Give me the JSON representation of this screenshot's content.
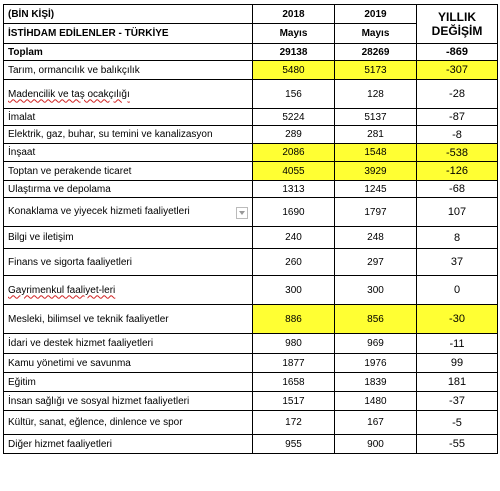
{
  "header": {
    "unit": "(BİN KİŞİ)",
    "subtitle": "İSTİHDAM EDİLENLER - TÜRKİYE",
    "col2018": "2018",
    "col2019": "2019",
    "month2018": "Mayıs",
    "month2019": "Mayıs",
    "change_line1": "YILLIK",
    "change_line2": "DEĞİŞİM"
  },
  "highlight_color": "#ffff33",
  "rows": [
    {
      "label": "Toplam",
      "v2018": "29138",
      "v2019": "28269",
      "change": "-869",
      "bold": true,
      "highlight": false
    },
    {
      "label": "Tarım, ormancılık ve balıkçılık",
      "v2018": "5480",
      "v2019": "5173",
      "change": "-307",
      "highlight": true
    },
    {
      "label": "Madencilik ve taş ocakçılığı",
      "v2018": "156",
      "v2019": "128",
      "change": "-28",
      "highlight": false
    },
    {
      "label": "İmalat",
      "v2018": "5224",
      "v2019": "5137",
      "change": "-87",
      "highlight": false
    },
    {
      "label": "Elektrik, gaz, buhar, su temini ve kanalizasyon",
      "v2018": "289",
      "v2019": "281",
      "change": "-8",
      "highlight": false
    },
    {
      "label": "İnşaat",
      "v2018": "2086",
      "v2019": "1548",
      "change": "-538",
      "highlight": true
    },
    {
      "label": "Toptan ve perakende ticaret",
      "v2018": "4055",
      "v2019": "3929",
      "change": "-126",
      "highlight": true
    },
    {
      "label": "Ulaştırma ve depolama",
      "v2018": "1313",
      "v2019": "1245",
      "change": "-68",
      "highlight": false
    },
    {
      "label": "Konaklama ve yiyecek hizmeti faaliyetleri",
      "v2018": "1690",
      "v2019": "1797",
      "change": "107",
      "highlight": false
    },
    {
      "label": "Bilgi ve iletişim",
      "v2018": "240",
      "v2019": "248",
      "change": "8",
      "highlight": false
    },
    {
      "label": "Finans ve sigorta faaliyetleri",
      "v2018": "260",
      "v2019": "297",
      "change": "37",
      "highlight": false
    },
    {
      "label": "Gayrimenkul faaliyet-leri",
      "v2018": "300",
      "v2019": "300",
      "change": "0",
      "highlight": false
    },
    {
      "label": "Mesleki, bilimsel ve teknik faaliyetler",
      "v2018": "886",
      "v2019": "856",
      "change": "-30",
      "highlight": true
    },
    {
      "label": "İdari ve destek hizmet faaliyetleri",
      "v2018": "980",
      "v2019": "969",
      "change": "-11",
      "highlight": false
    },
    {
      "label": "Kamu yönetimi ve savunma",
      "v2018": "1877",
      "v2019": "1976",
      "change": "99",
      "highlight": false
    },
    {
      "label": "Eğitim",
      "v2018": "1658",
      "v2019": "1839",
      "change": "181",
      "highlight": false
    },
    {
      "label": "İnsan sağlığı ve sosyal hizmet faaliyetleri",
      "v2018": "1517",
      "v2019": "1480",
      "change": "-37",
      "highlight": false
    },
    {
      "label": "Kültür, sanat, eğlence, dinlence ve spor",
      "v2018": "172",
      "v2019": "167",
      "change": "-5",
      "highlight": false
    },
    {
      "label": "Diğer hizmet faaliyetleri",
      "v2018": "955",
      "v2019": "900",
      "change": "-55",
      "highlight": false
    }
  ]
}
